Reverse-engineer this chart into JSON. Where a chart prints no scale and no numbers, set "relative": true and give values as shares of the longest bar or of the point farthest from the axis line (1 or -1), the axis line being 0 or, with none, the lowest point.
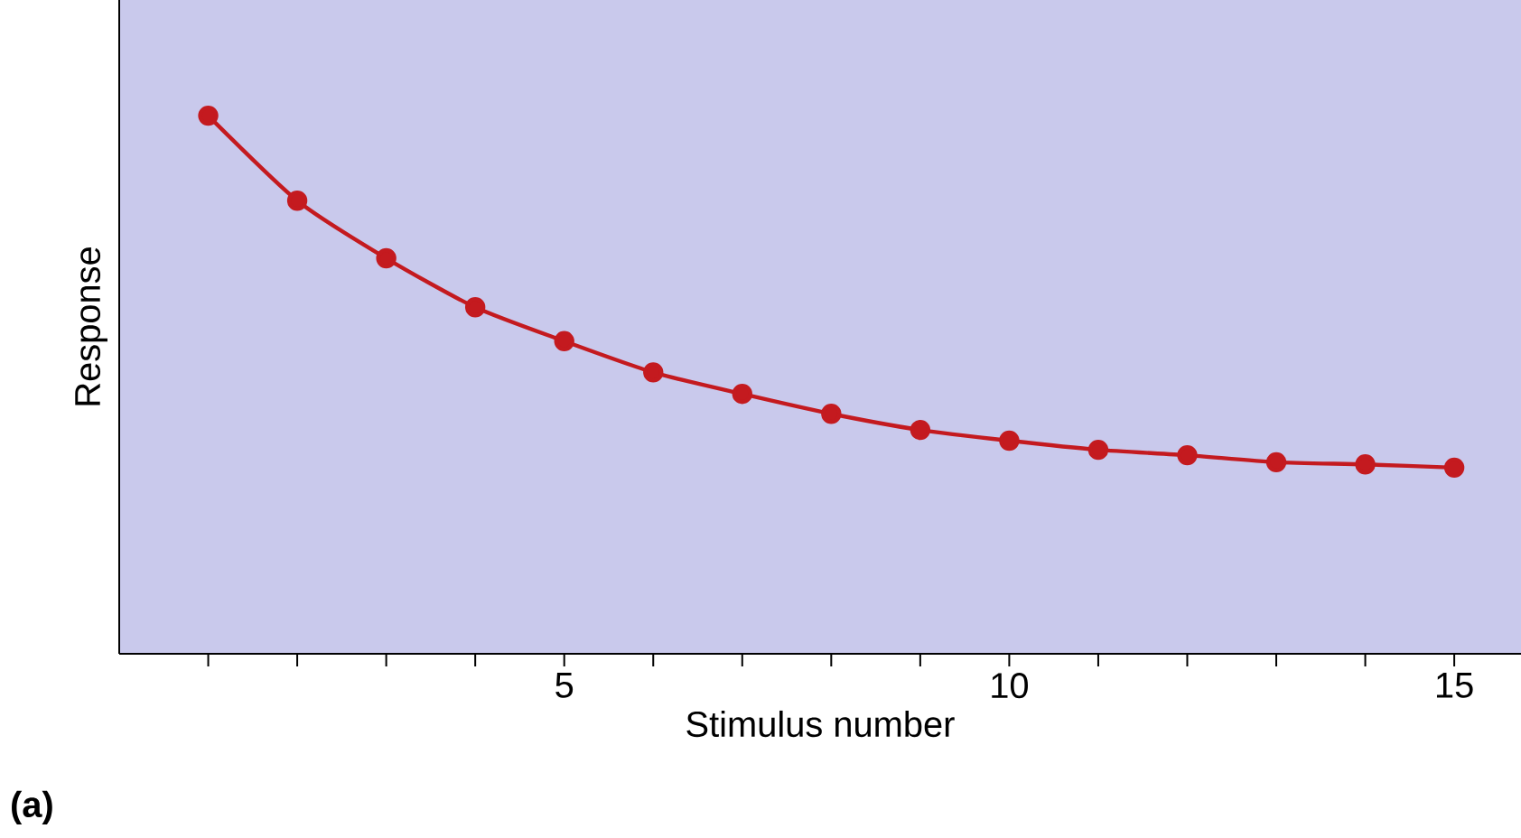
{
  "chart_data": {
    "type": "line",
    "xlabel": "Stimulus number",
    "ylabel": "Response",
    "relative": true,
    "x": [
      1,
      2,
      3,
      4,
      5,
      6,
      7,
      8,
      9,
      10,
      11,
      12,
      13,
      14,
      15
    ],
    "series": [
      {
        "color": "#c41a1f",
        "values": [
          1.0,
          0.842,
          0.735,
          0.644,
          0.581,
          0.523,
          0.483,
          0.446,
          0.416,
          0.396,
          0.379,
          0.369,
          0.356,
          0.352,
          0.346
        ]
      }
    ],
    "xlim": [
      0,
      15.75
    ],
    "xticks": [
      {
        "value": 1,
        "label": null
      },
      {
        "value": 2,
        "label": null
      },
      {
        "value": 3,
        "label": null
      },
      {
        "value": 4,
        "label": null
      },
      5,
      {
        "value": 6,
        "label": null
      },
      {
        "value": 7,
        "label": null
      },
      {
        "value": 8,
        "label": null
      },
      {
        "value": 9,
        "label": null
      },
      10,
      {
        "value": 11,
        "label": null
      },
      {
        "value": 12,
        "label": null
      },
      {
        "value": 13,
        "label": null
      },
      {
        "value": 14,
        "label": null
      },
      15
    ],
    "tick_labels": "x",
    "marker": "circle",
    "line_style": "solid",
    "annotations": [
      "(a)"
    ]
  }
}
